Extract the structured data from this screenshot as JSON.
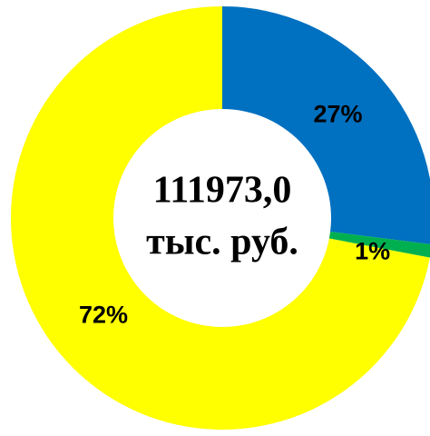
{
  "chart_data": {
    "type": "donut",
    "categories": [
      "",
      "",
      ""
    ],
    "values": [
      27,
      1,
      72
    ],
    "value_labels": [
      "27%",
      "1%",
      "72%"
    ],
    "colors": [
      "#0070c0",
      "#00b050",
      "#ffff00"
    ],
    "center_label": [
      "111973,0",
      "тыс. руб."
    ]
  }
}
